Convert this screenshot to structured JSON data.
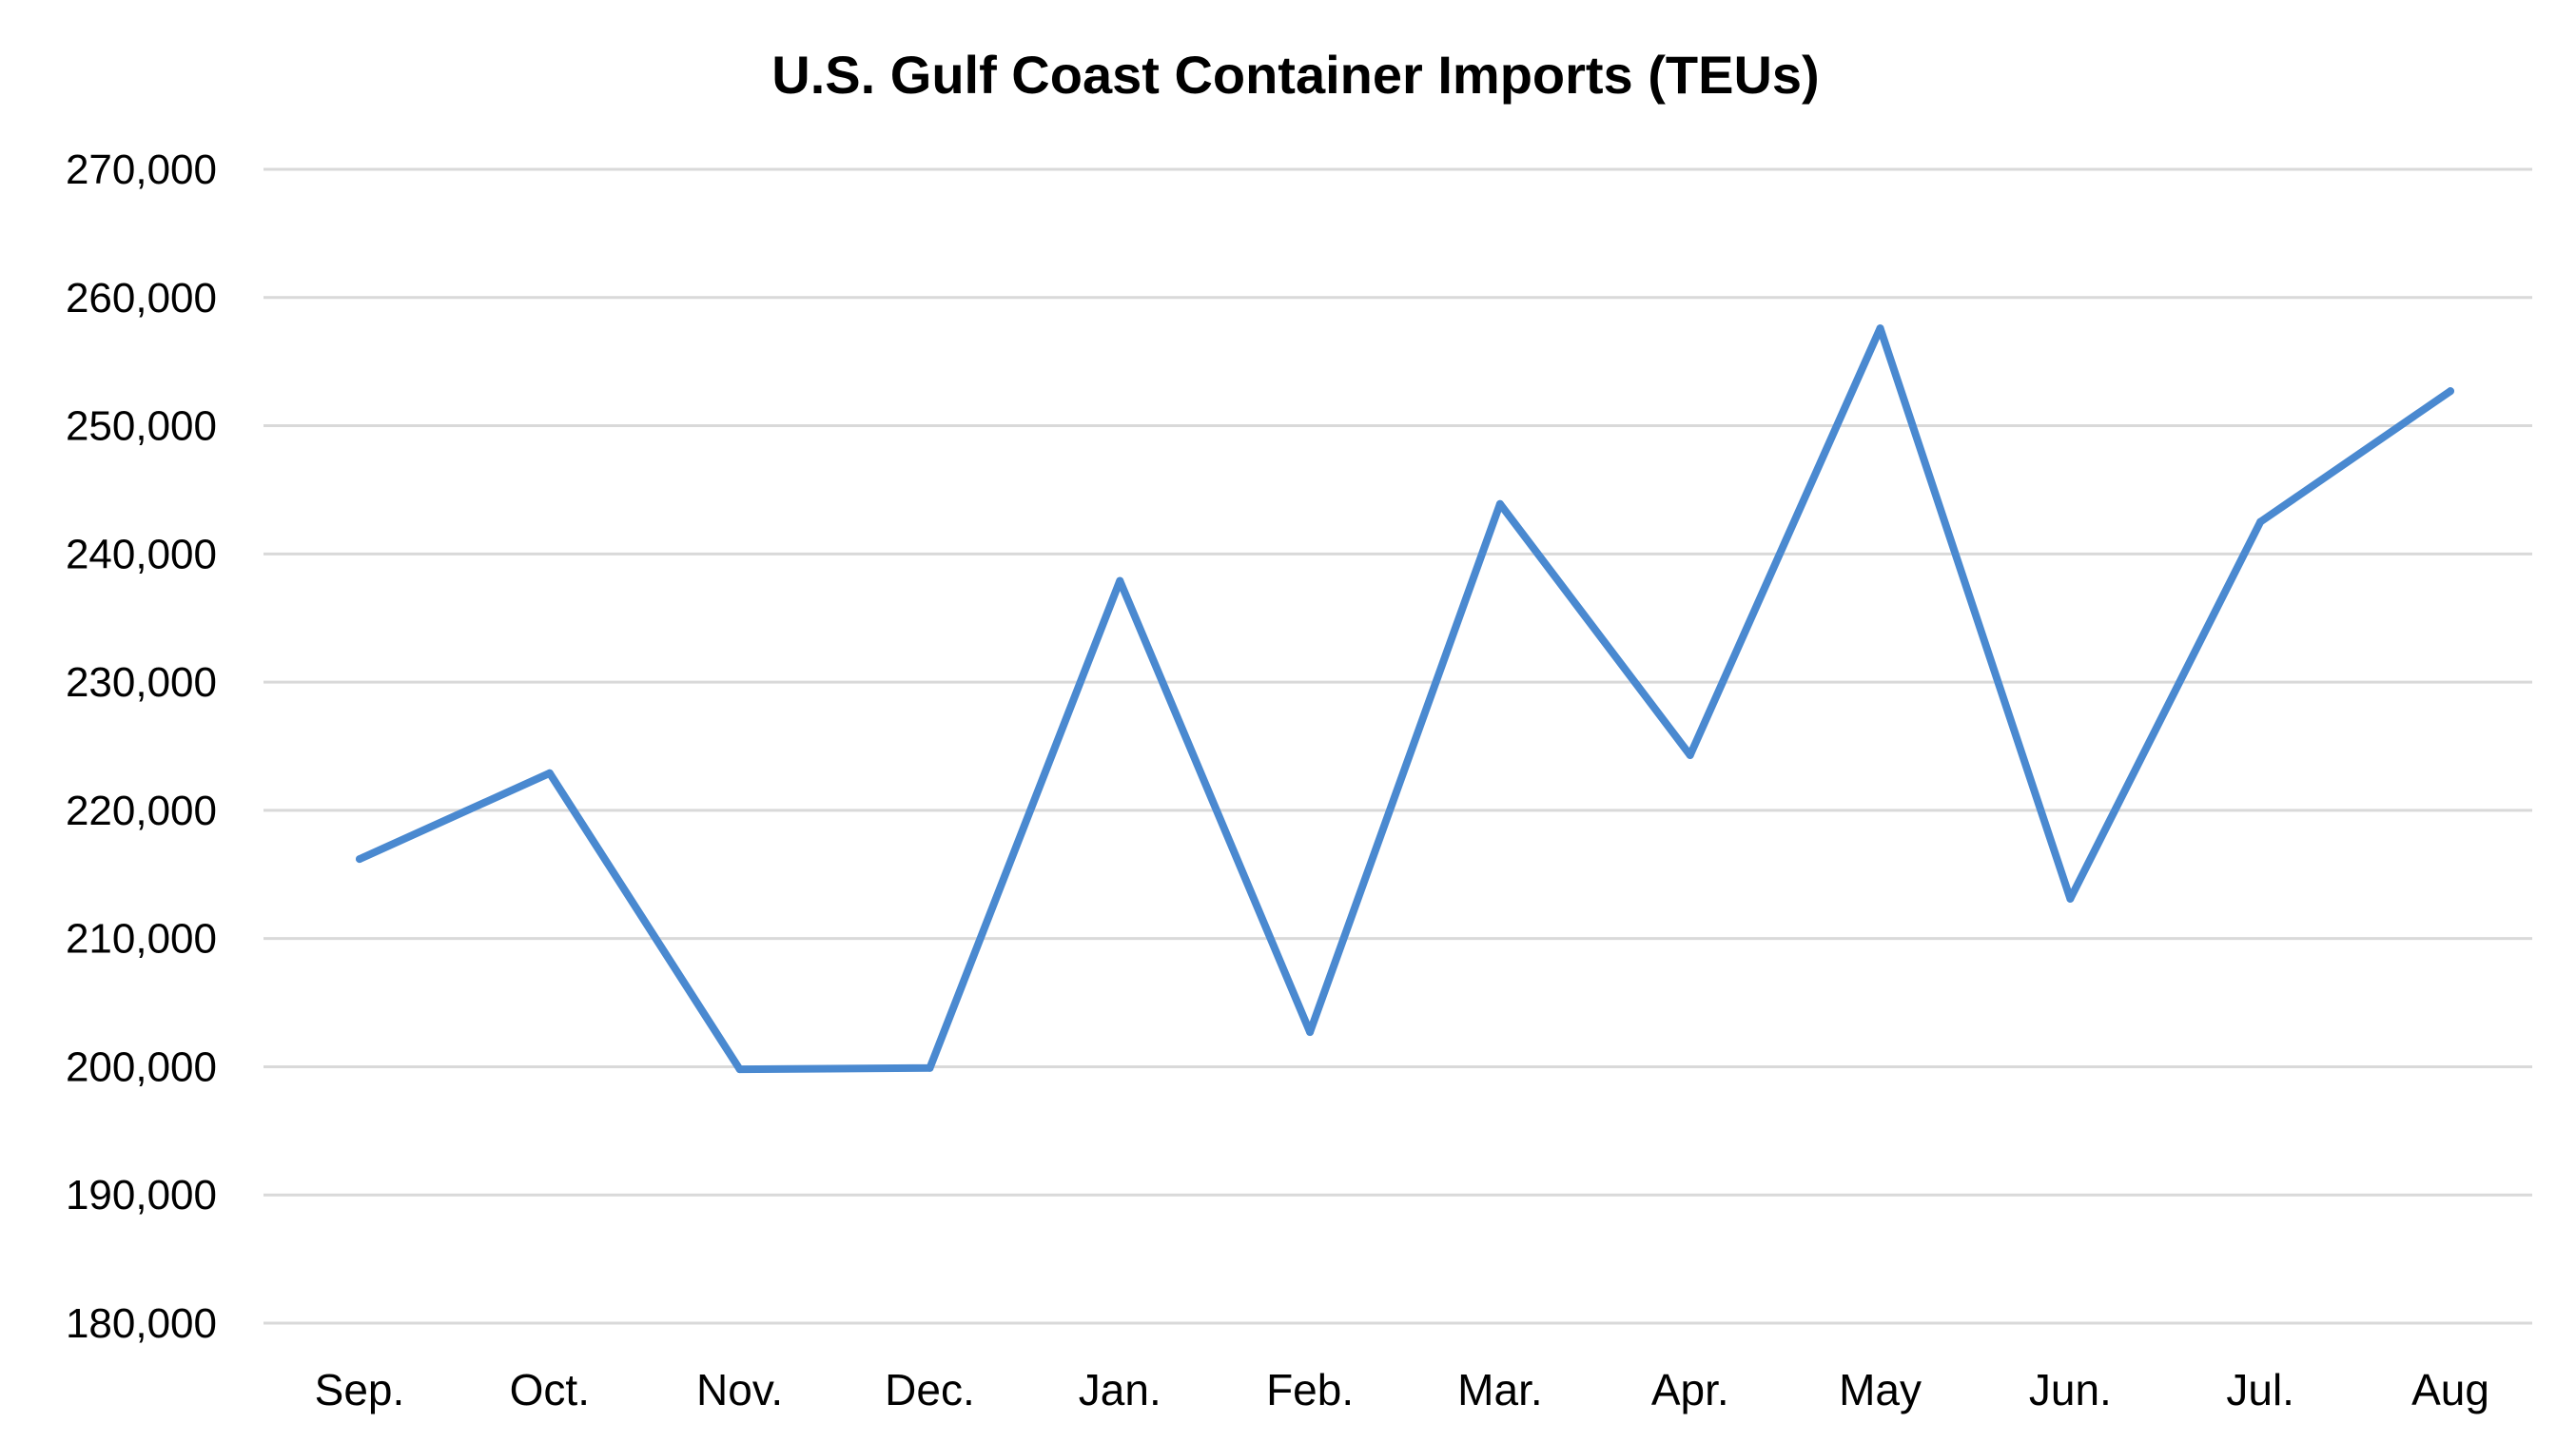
{
  "chart_data": {
    "type": "line",
    "title": "U.S. Gulf Coast Container Imports (TEUs)",
    "xlabel": "",
    "ylabel": "",
    "categories": [
      "Sep.",
      "Oct.",
      "Nov.",
      "Dec.",
      "Jan.",
      "Feb.",
      "Mar.",
      "Apr.",
      "May",
      "Jun.",
      "Jul.",
      "Aug"
    ],
    "series": [
      {
        "values": [
          216200,
          222900,
          199800,
          199900,
          237900,
          202700,
          243900,
          224300,
          257600,
          213100,
          242500,
          252700
        ],
        "color": "#4a89d0"
      }
    ],
    "ylim": [
      180000,
      270000
    ],
    "y_ticks": [
      180000,
      190000,
      200000,
      210000,
      220000,
      230000,
      240000,
      250000,
      260000,
      270000
    ],
    "y_tick_labels": [
      "180,000",
      "190,000",
      "200,000",
      "210,000",
      "220,000",
      "230,000",
      "240,000",
      "250,000",
      "260,000",
      "270,000"
    ],
    "grid": "horizontal",
    "legend": "none"
  }
}
